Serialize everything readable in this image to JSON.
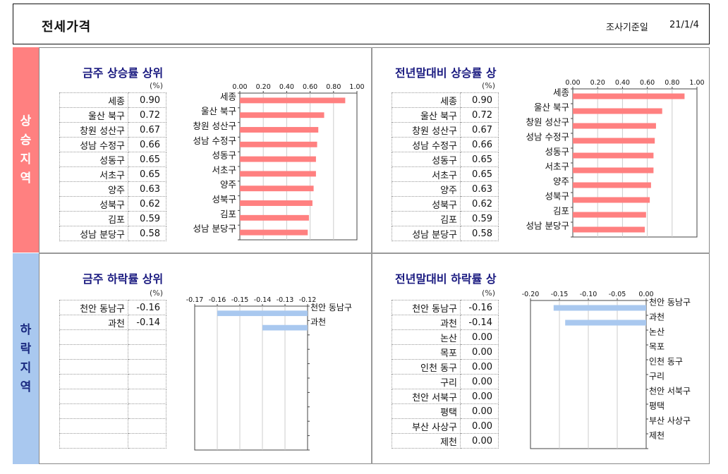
{
  "header": {
    "title": "전세가격",
    "date_label": "조사기준일",
    "date": "21/1/4"
  },
  "bands": {
    "up": [
      "상",
      "승",
      "지",
      "역"
    ],
    "down": [
      "하",
      "락",
      "지",
      "역"
    ]
  },
  "percent_unit": "(%)",
  "panels": {
    "weekly_up": {
      "title": "금주 상승률 상위",
      "names": [
        "세종",
        "울산 북구",
        "창원 성산구",
        "성남 수정구",
        "성동구",
        "서초구",
        "양주",
        "성북구",
        "김포",
        "성남 분당구"
      ],
      "values": [
        "0.90",
        "0.72",
        "0.67",
        "0.66",
        "0.65",
        "0.65",
        "0.63",
        "0.62",
        "0.59",
        "0.58"
      ],
      "ticks": [
        "0.00",
        "0.20",
        "0.40",
        "0.60",
        "0.80",
        "1.00"
      ]
    },
    "yearly_up": {
      "title": "전년말대비 상승률 상",
      "names": [
        "세종",
        "울산 북구",
        "창원 성산구",
        "성남 수정구",
        "성동구",
        "서초구",
        "양주",
        "성북구",
        "김포",
        "성남 분당구"
      ],
      "values": [
        "0.90",
        "0.72",
        "0.67",
        "0.66",
        "0.65",
        "0.65",
        "0.63",
        "0.62",
        "0.59",
        "0.58"
      ],
      "ticks": [
        "0.00",
        "0.20",
        "0.40",
        "0.60",
        "0.80",
        "1.00"
      ]
    },
    "weekly_down": {
      "title": "금주 하락률 상위",
      "names": [
        "천안 동남구",
        "과천"
      ],
      "values": [
        "-0.16",
        "-0.14"
      ],
      "ticks": [
        "-0.17",
        "-0.16",
        "-0.15",
        "-0.14",
        "-0.13",
        "-0.12"
      ]
    },
    "yearly_down": {
      "title": "전년말대비 하락률 상",
      "names": [
        "천안 동남구",
        "과천",
        "논산",
        "목포",
        "인천 동구",
        "구리",
        "천안 서북구",
        "평택",
        "부산 사상구",
        "제천"
      ],
      "values": [
        "-0.16",
        "-0.14",
        "0.00",
        "0.00",
        "0.00",
        "0.00",
        "0.00",
        "0.00",
        "0.00",
        "0.00"
      ],
      "ticks": [
        "-0.20",
        "-0.15",
        "-0.10",
        "-0.05",
        "0.00"
      ]
    }
  },
  "chart_data": [
    {
      "type": "bar",
      "orientation": "horizontal",
      "categories": [
        "세종",
        "울산 북구",
        "창원 성산구",
        "성남 수정구",
        "성동구",
        "서초구",
        "양주",
        "성북구",
        "김포",
        "성남 분당구"
      ],
      "values": [
        0.9,
        0.72,
        0.67,
        0.66,
        0.65,
        0.65,
        0.63,
        0.62,
        0.59,
        0.58
      ],
      "xlim": [
        0,
        1.0
      ],
      "color": "#ff8080"
    },
    {
      "type": "bar",
      "orientation": "horizontal",
      "categories": [
        "세종",
        "울산 북구",
        "창원 성산구",
        "성남 수정구",
        "성동구",
        "서초구",
        "양주",
        "성북구",
        "김포",
        "성남 분당구"
      ],
      "values": [
        0.9,
        0.72,
        0.67,
        0.66,
        0.65,
        0.65,
        0.63,
        0.62,
        0.59,
        0.58
      ],
      "xlim": [
        0,
        1.0
      ],
      "color": "#ff8080"
    },
    {
      "type": "bar",
      "orientation": "horizontal",
      "categories": [
        "천안 동남구",
        "과천"
      ],
      "values": [
        -0.16,
        -0.14
      ],
      "xlim": [
        -0.17,
        -0.12
      ],
      "color": "#a9c8ef"
    },
    {
      "type": "bar",
      "orientation": "horizontal",
      "categories": [
        "천안 동남구",
        "과천",
        "논산",
        "목포",
        "인천 동구",
        "구리",
        "천안 서북구",
        "평택",
        "부산 사상구",
        "제천"
      ],
      "values": [
        -0.16,
        -0.14,
        0.0,
        0.0,
        0.0,
        0.0,
        0.0,
        0.0,
        0.0,
        0.0
      ],
      "xlim": [
        -0.2,
        0.0
      ],
      "color": "#a9c8ef"
    }
  ]
}
